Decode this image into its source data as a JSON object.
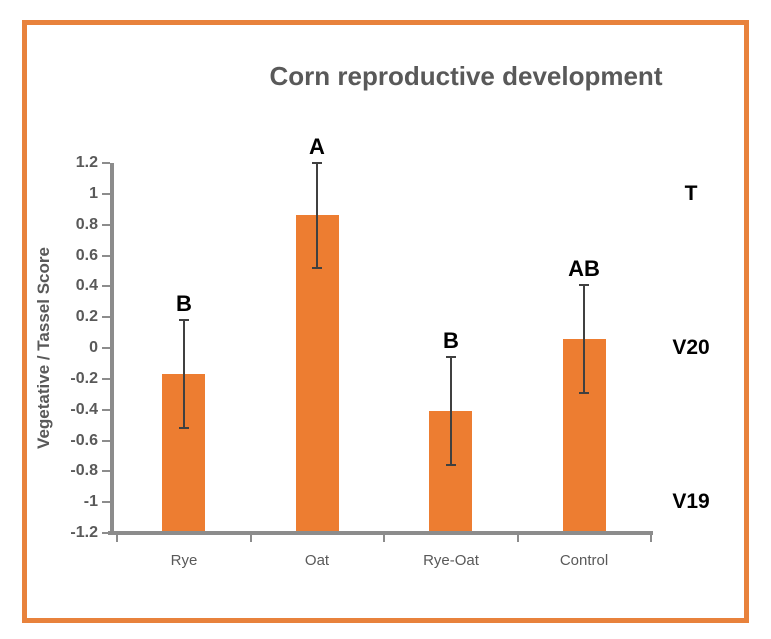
{
  "chart_data": {
    "type": "bar",
    "title": "Corn reproductive development",
    "ylabel": "Vegetative / Tassel Score",
    "xlabel": "",
    "categories": [
      "Rye",
      "Oat",
      "Rye-Oat",
      "Control"
    ],
    "values": [
      -0.17,
      0.86,
      -0.41,
      0.06
    ],
    "errors": [
      0.35,
      0.34,
      0.35,
      0.35
    ],
    "significance_letters": [
      "B",
      "A",
      "B",
      "AB"
    ],
    "right_stage_labels": [
      {
        "label": "T",
        "value": 1.0
      },
      {
        "label": "V20",
        "value": 0.0
      },
      {
        "label": "V19",
        "value": -1.0
      }
    ],
    "ylim": [
      -1.2,
      1.2
    ],
    "ytick_step": 0.2,
    "yticks": [
      1.2,
      1,
      0.8,
      0.6,
      0.4,
      0.2,
      0,
      -0.2,
      -0.4,
      -0.6,
      -0.8,
      -1,
      -1.2
    ],
    "ytick_labels": [
      "1.2",
      "1",
      "0.8",
      "0.6",
      "0.4",
      "0.2",
      "0",
      "-0.2",
      "-0.4",
      "-0.6",
      "-0.8",
      "-1",
      "-1.2"
    ],
    "grid": false,
    "legend": null,
    "bars_start_at_axis_minimum": true,
    "error_bar_caps": true,
    "colors": {
      "bar": "#ED7D31",
      "frame_border": "#E8823C",
      "axis": "#8C8C8C",
      "tick_text": "#595959",
      "title_text": "#595959",
      "error_bar": "#404040",
      "annotation_text": "#000000"
    }
  }
}
